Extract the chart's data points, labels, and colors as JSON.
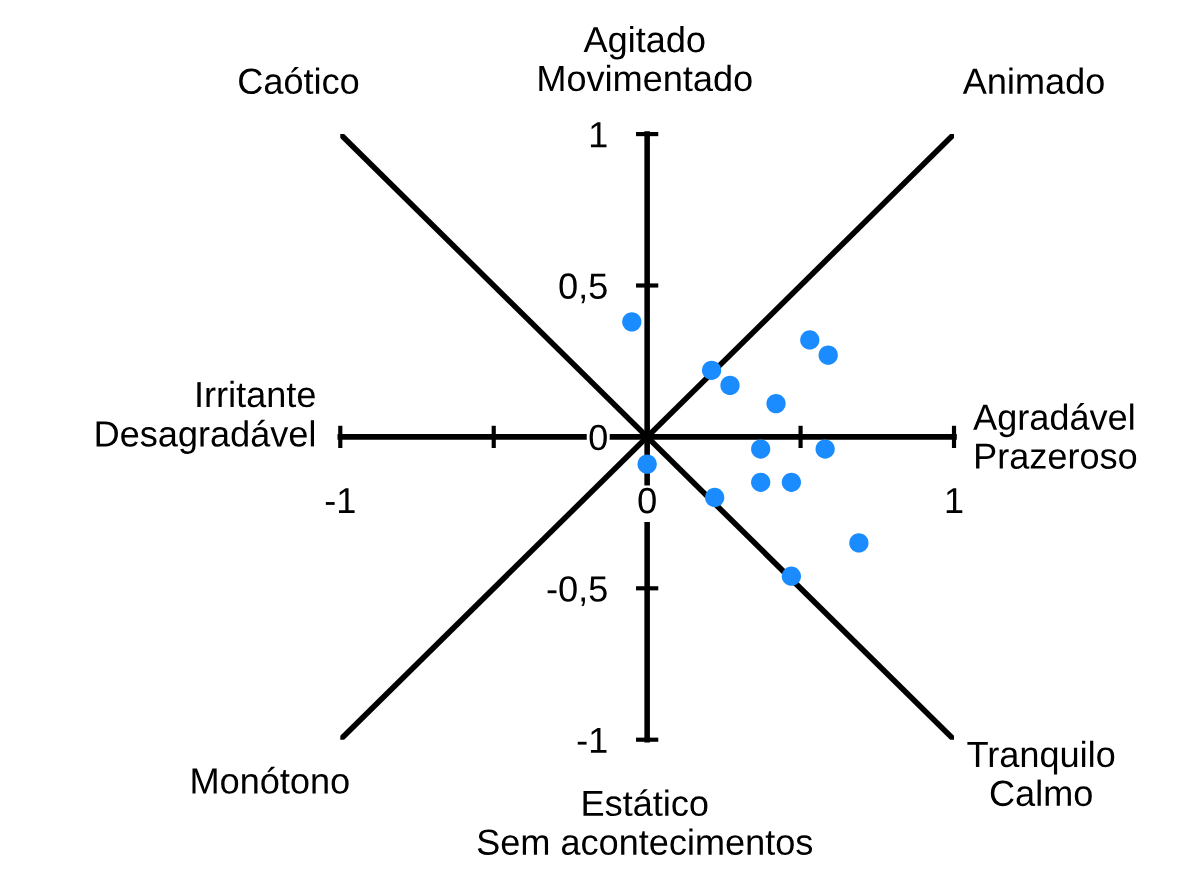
{
  "chart_data": {
    "type": "scatter",
    "annotations": [
      "Caótico",
      "Agitado\nMovimentado",
      "Animado",
      "Irritante\nDesagradável",
      "Agradável\nPrazeroso",
      "Monótono",
      "Estático\nSem acontecimentos",
      "Tranquilo\nCalmo"
    ],
    "xlim": [
      -1,
      1
    ],
    "ylim": [
      -1,
      1
    ],
    "xticks": [
      {
        "value": -1,
        "label": "-1"
      },
      0,
      {
        "value": 0.5,
        "label": null
      },
      1,
      {
        "value": -0.5,
        "label": null
      }
    ],
    "yticks": [
      {
        "value": -1,
        "label": "-1"
      },
      {
        "value": -0.5,
        "label": "-0,5"
      },
      0,
      {
        "value": 0.5,
        "label": "0,5"
      },
      1
    ],
    "grid": false,
    "legend": false,
    "series": [
      {
        "type": "line",
        "color": "#000000",
        "x": [
          -1,
          1
        ],
        "values": [
          1,
          -1
        ],
        "marker": "none"
      },
      {
        "type": "line",
        "color": "#000000",
        "x": [
          -1,
          1
        ],
        "values": [
          -1,
          1
        ],
        "marker": "none"
      },
      {
        "color": "#1a8cff",
        "marker": "circle",
        "x": [
          -0.05,
          0.21,
          0.27,
          0.53,
          0.59,
          0.42,
          0.37,
          0.58,
          0.37,
          0.47,
          0.0,
          0.22,
          0.69,
          0.47
        ],
        "values": [
          0.38,
          0.22,
          0.17,
          0.32,
          0.27,
          0.11,
          -0.04,
          -0.04,
          -0.15,
          -0.15,
          -0.09,
          -0.2,
          -0.35,
          -0.46
        ]
      }
    ]
  }
}
